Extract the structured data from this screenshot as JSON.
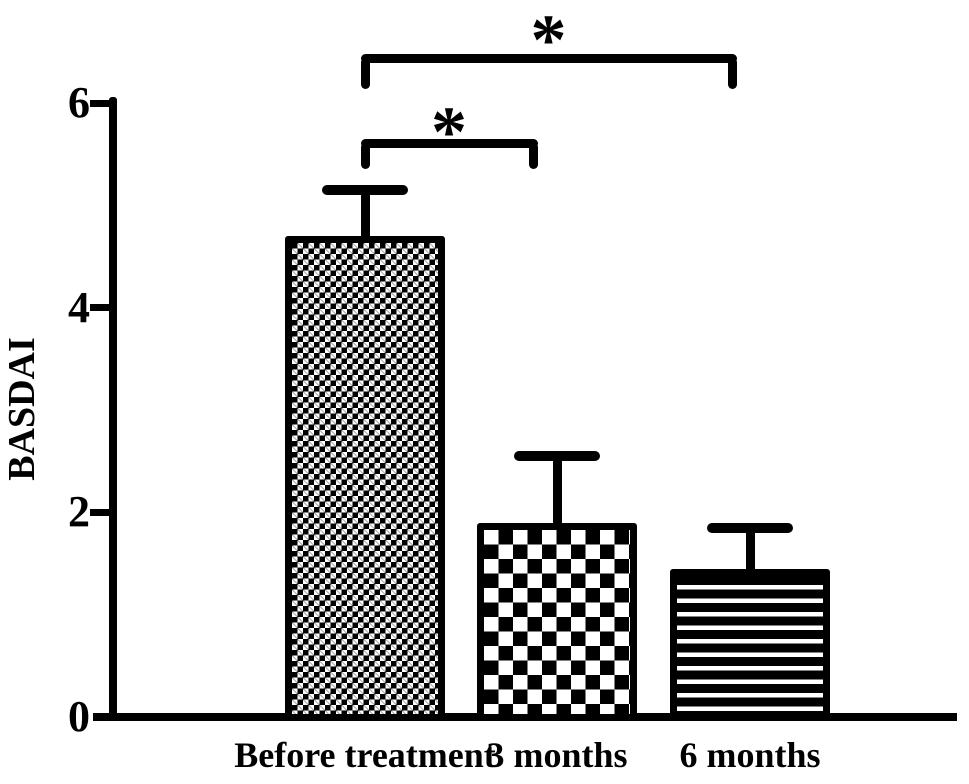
{
  "figure": {
    "background_color": "#ffffff",
    "ink_color": "#000000"
  },
  "chart_data": {
    "type": "bar",
    "title": "",
    "xlabel": "",
    "ylabel": "BASDAI",
    "ylim": [
      0,
      6
    ],
    "yticks": [
      0,
      2,
      4,
      6
    ],
    "ytick_labels": [
      "0",
      "2",
      "4",
      "6"
    ],
    "grid": false,
    "legend": null,
    "categories": [
      "Before treatment",
      "3 months",
      "6 months"
    ],
    "series": [
      {
        "name": "BASDAI",
        "values": [
          4.7,
          1.9,
          1.45
        ],
        "error_upper": [
          0.45,
          0.65,
          0.4
        ]
      }
    ],
    "bar_fill_patterns": [
      "fine-checkerboard",
      "coarse-checkerboard",
      "horizontal-stripes"
    ],
    "bar_color": "#000000",
    "significance_brackets": [
      {
        "from": 0,
        "to": 1,
        "label": "*"
      },
      {
        "from": 0,
        "to": 2,
        "label": "*"
      }
    ]
  }
}
